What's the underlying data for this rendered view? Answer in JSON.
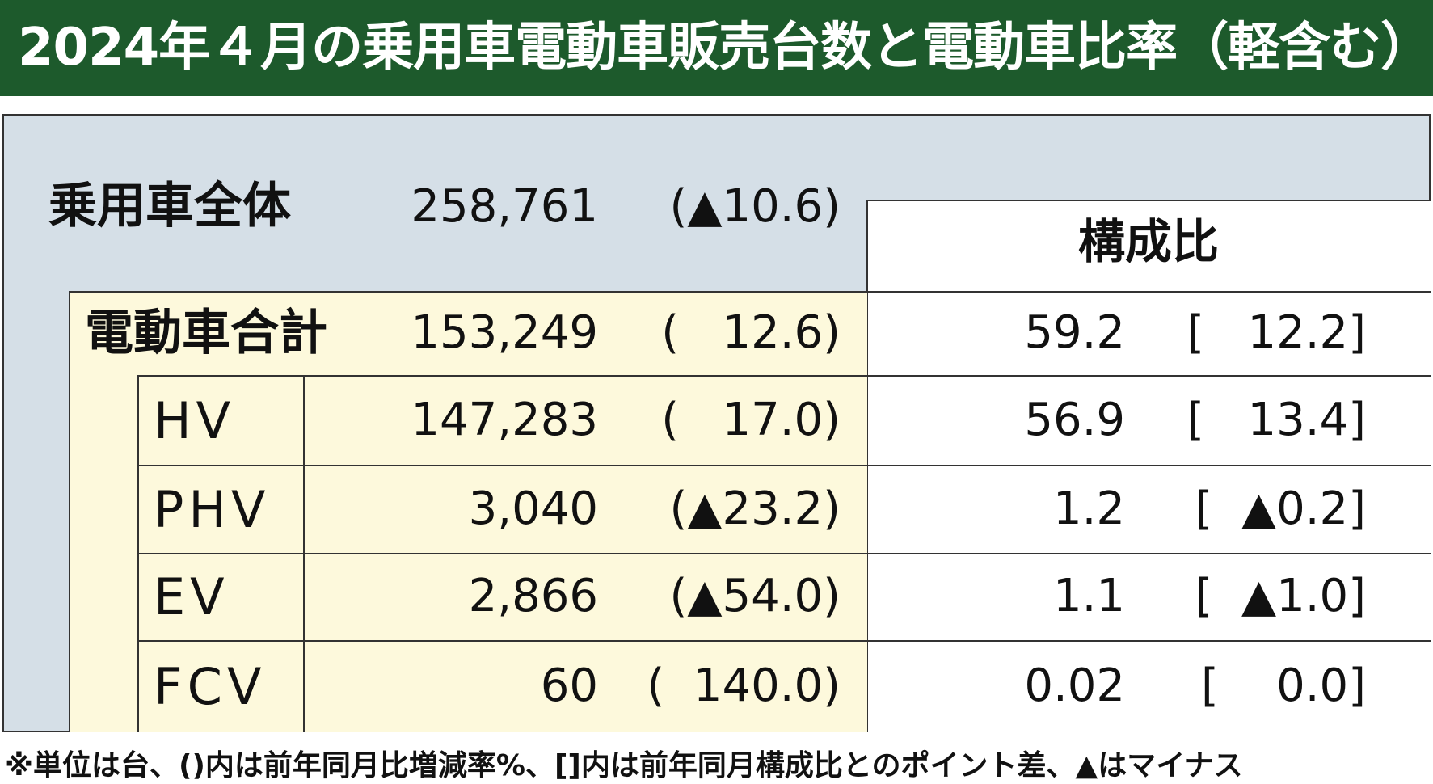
{
  "title": "2024年４月の乗用車電動車販売台数と電動車比率（軽含む）",
  "total": {
    "label": "乗用車全体",
    "count": "258,761",
    "change": "(▲10.6)"
  },
  "share_header": "構成比",
  "rows": [
    {
      "label": "電動車合計",
      "count": "153,249",
      "change": "(   12.6)",
      "share": "59.2",
      "diff": "[   12.2]"
    },
    {
      "label": "HV",
      "count": "147,283",
      "change": "(   17.0)",
      "share": "56.9",
      "diff": "[   13.4]"
    },
    {
      "label": "PHV",
      "count": "3,040",
      "change": "(▲23.2)",
      "share": "1.2",
      "diff": "[  ▲0.2]"
    },
    {
      "label": "EV",
      "count": "2,866",
      "change": "(▲54.0)",
      "share": "1.1",
      "diff": "[  ▲1.0]"
    },
    {
      "label": "FCV",
      "count": "60",
      "change": "(  140.0)",
      "share": "0.02",
      "diff": "[    0.0]"
    }
  ],
  "footnote": "※単位は台、()内は前年同月比増減率%、[]内は前年同月構成比とのポイント差、▲はマイナス"
}
